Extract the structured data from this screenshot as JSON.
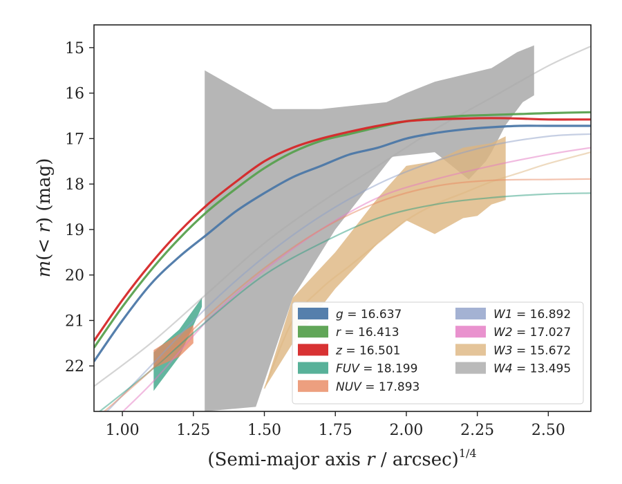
{
  "chart_data": {
    "type": "line",
    "xlabel": "(Semi-major axis r / arcsec)",
    "xlabel_var": "r",
    "xlabel_exponent": "1/4",
    "ylabel": "m(< r) (mag)",
    "xlim": [
      0.9,
      2.65
    ],
    "ylim": [
      23.0,
      14.5
    ],
    "y_inverted": true,
    "x_ticks": [
      "1.00",
      "1.25",
      "1.50",
      "1.75",
      "2.00",
      "2.25",
      "2.50"
    ],
    "y_ticks": [
      "15",
      "16",
      "17",
      "18",
      "19",
      "20",
      "21",
      "22"
    ],
    "legend_position": "lower-right",
    "legend_columns": 2,
    "grid": false,
    "series": [
      {
        "name": "g = 16.637",
        "label_var": "g",
        "label_value": "16.637",
        "color": "#4c78a8",
        "kind": "profile_band",
        "x": [
          0.9,
          1.0,
          1.1,
          1.2,
          1.3,
          1.4,
          1.5,
          1.6,
          1.7,
          1.8,
          1.9,
          2.0,
          2.1,
          2.2,
          2.3,
          2.4,
          2.5,
          2.65
        ],
        "y": [
          21.9,
          21.0,
          20.2,
          19.6,
          19.1,
          18.6,
          18.2,
          17.85,
          17.6,
          17.35,
          17.2,
          17.0,
          16.88,
          16.8,
          16.75,
          16.72,
          16.72,
          16.72
        ]
      },
      {
        "name": "r = 16.413",
        "label_var": "r",
        "label_value": "16.413",
        "color": "#59a14f",
        "kind": "profile_band",
        "x": [
          0.9,
          1.0,
          1.1,
          1.2,
          1.3,
          1.4,
          1.5,
          1.6,
          1.7,
          1.8,
          1.9,
          2.0,
          2.1,
          2.2,
          2.3,
          2.4,
          2.5,
          2.65
        ],
        "y": [
          21.6,
          20.7,
          19.9,
          19.2,
          18.6,
          18.1,
          17.65,
          17.3,
          17.05,
          16.9,
          16.75,
          16.62,
          16.55,
          16.5,
          16.48,
          16.46,
          16.44,
          16.42
        ]
      },
      {
        "name": "z = 16.501",
        "label_var": "z",
        "label_value": "16.501",
        "color": "#d62728",
        "kind": "profile_band",
        "x": [
          0.9,
          1.0,
          1.1,
          1.2,
          1.3,
          1.4,
          1.5,
          1.6,
          1.7,
          1.8,
          1.9,
          2.0,
          2.1,
          2.2,
          2.3,
          2.4,
          2.5,
          2.65
        ],
        "y": [
          21.45,
          20.55,
          19.75,
          19.05,
          18.45,
          17.95,
          17.5,
          17.2,
          17.0,
          16.85,
          16.72,
          16.62,
          16.58,
          16.56,
          16.55,
          16.56,
          16.58,
          16.58
        ]
      },
      {
        "name": "FUV = 18.199",
        "label_var": "FUV",
        "label_value": "18.199",
        "color": "#2e9e7f",
        "kind": "profile_band",
        "x": [
          0.9,
          1.1,
          1.3,
          1.5,
          1.7,
          1.9,
          2.1,
          2.3,
          2.5,
          2.65
        ],
        "y": [
          23.1,
          22.1,
          21.0,
          20.0,
          19.3,
          18.75,
          18.45,
          18.3,
          18.22,
          18.2
        ]
      },
      {
        "name": "NUV = 17.893",
        "label_var": "NUV",
        "label_value": "17.893",
        "color": "#e8875f",
        "kind": "profile_band",
        "x": [
          0.9,
          1.1,
          1.3,
          1.5,
          1.7,
          1.9,
          2.1,
          2.3,
          2.5,
          2.65
        ],
        "y": [
          23.2,
          22.1,
          20.9,
          19.85,
          19.0,
          18.4,
          18.05,
          17.92,
          17.9,
          17.89
        ]
      },
      {
        "name": "W1 = 16.892",
        "label_var": "W1",
        "label_value": "16.892",
        "color": "#8d9fc8",
        "kind": "profile_band",
        "x": [
          0.9,
          1.1,
          1.3,
          1.5,
          1.7,
          1.9,
          2.1,
          2.3,
          2.5,
          2.65
        ],
        "y": [
          23.3,
          22.0,
          20.7,
          19.6,
          18.7,
          18.0,
          17.5,
          17.15,
          16.95,
          16.9
        ]
      },
      {
        "name": "W2 = 17.027",
        "label_var": "W2",
        "label_value": "17.027",
        "color": "#e377c2",
        "kind": "profile_band",
        "x": [
          0.9,
          1.1,
          1.3,
          1.5,
          1.7,
          1.9,
          2.1,
          2.3,
          2.5,
          2.65
        ],
        "y": [
          23.6,
          22.4,
          21.0,
          19.9,
          19.0,
          18.3,
          17.9,
          17.6,
          17.35,
          17.2
        ]
      },
      {
        "name": "W3 = 15.672",
        "label_var": "W3",
        "label_value": "15.672",
        "color": "#ddb57f",
        "kind": "profile_band",
        "x": [
          1.5,
          1.6,
          1.7,
          1.8,
          1.9,
          2.0,
          2.1,
          2.2,
          2.3,
          2.4,
          2.5,
          2.65
        ],
        "y": [
          22.5,
          21.0,
          20.3,
          19.8,
          19.3,
          18.8,
          18.45,
          18.2,
          17.95,
          17.75,
          17.55,
          17.3
        ]
      },
      {
        "name": "W4 = 13.495",
        "label_var": "W4",
        "label_value": "13.495",
        "color": "#a9a9a9",
        "kind": "profile_band",
        "x": [
          0.9,
          1.1,
          1.3,
          1.5,
          1.7,
          1.9,
          2.1,
          2.3,
          2.5,
          2.65
        ],
        "y": [
          22.45,
          21.5,
          20.4,
          19.3,
          18.4,
          17.6,
          16.8,
          16.1,
          15.4,
          14.97
        ]
      }
    ],
    "error_bands": [
      {
        "name": "W4 band",
        "color": "#a9a9a9",
        "opacity": 0.85,
        "upper": [
          [
            1.29,
            15.5
          ],
          [
            1.53,
            16.35
          ],
          [
            1.7,
            16.35
          ],
          [
            1.93,
            16.2
          ],
          [
            2.0,
            16.0
          ],
          [
            2.1,
            15.75
          ],
          [
            2.3,
            15.45
          ],
          [
            2.39,
            15.1
          ],
          [
            2.45,
            14.95
          ]
        ],
        "lower": [
          [
            2.45,
            16.05
          ],
          [
            2.41,
            16.2
          ],
          [
            2.35,
            16.7
          ],
          [
            2.3,
            17.3
          ],
          [
            2.28,
            17.5
          ],
          [
            2.22,
            17.9
          ],
          [
            2.1,
            17.3
          ],
          [
            1.95,
            17.4
          ],
          [
            1.75,
            19.0
          ],
          [
            1.6,
            20.5
          ],
          [
            1.47,
            22.9
          ],
          [
            1.29,
            23.0
          ]
        ]
      },
      {
        "name": "W3 band",
        "color": "#ddb57f",
        "opacity": 0.8,
        "upper": [
          [
            1.6,
            20.5
          ],
          [
            1.75,
            19.5
          ],
          [
            1.9,
            18.3
          ],
          [
            2.0,
            17.6
          ],
          [
            2.1,
            17.5
          ],
          [
            2.2,
            17.2
          ],
          [
            2.3,
            17.1
          ],
          [
            2.35,
            16.95
          ]
        ],
        "lower": [
          [
            2.35,
            18.35
          ],
          [
            2.3,
            18.45
          ],
          [
            2.25,
            18.7
          ],
          [
            2.2,
            18.75
          ],
          [
            2.1,
            19.1
          ],
          [
            2.0,
            18.8
          ],
          [
            1.9,
            19.3
          ],
          [
            1.75,
            20.3
          ],
          [
            1.6,
            21.5
          ],
          [
            1.5,
            22.5
          ]
        ]
      },
      {
        "name": "FUV band",
        "color": "#2e9e7f",
        "opacity": 0.75,
        "upper": [
          [
            1.11,
            21.7
          ],
          [
            1.2,
            21.2
          ],
          [
            1.28,
            20.5
          ]
        ],
        "lower": [
          [
            1.28,
            20.7
          ],
          [
            1.2,
            21.8
          ],
          [
            1.11,
            22.55
          ]
        ]
      },
      {
        "name": "NUV band",
        "color": "#e8875f",
        "opacity": 0.75,
        "upper": [
          [
            1.11,
            21.65
          ],
          [
            1.2,
            21.3
          ],
          [
            1.25,
            21.1
          ]
        ],
        "lower": [
          [
            1.25,
            21.5
          ],
          [
            1.2,
            21.8
          ],
          [
            1.11,
            22.05
          ]
        ]
      }
    ],
    "legend": {
      "col1": [
        "g",
        "r",
        "z",
        "FUV",
        "NUV"
      ],
      "col2": [
        "W1",
        "W2",
        "W3",
        "W4"
      ]
    }
  }
}
